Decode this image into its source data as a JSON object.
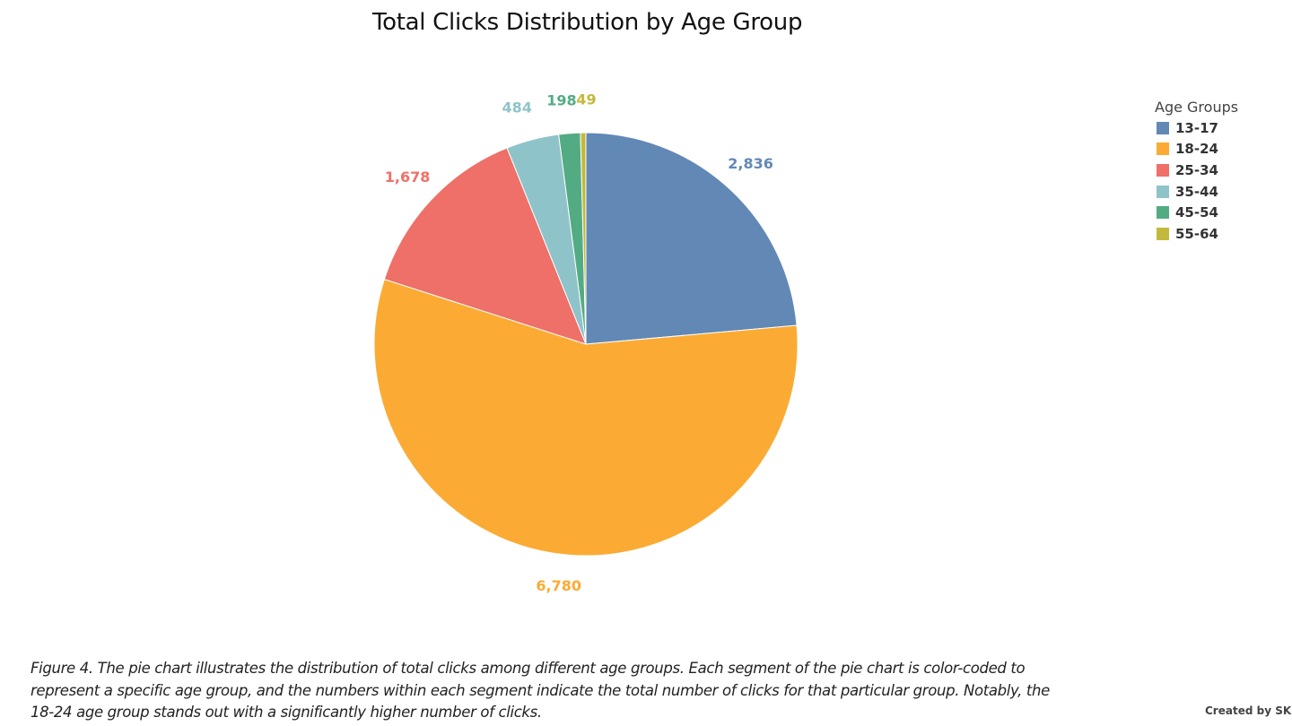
{
  "chart_data": {
    "type": "pie",
    "title": "Total Clicks Distribution by Age Group",
    "legend_title": "Age Groups",
    "legend_position": "top-right",
    "categories": [
      "13-17",
      "18-24",
      "25-34",
      "35-44",
      "45-54",
      "55-64"
    ],
    "values": [
      2836,
      6780,
      1678,
      484,
      198,
      49
    ],
    "value_labels": [
      "2,836",
      "6,780",
      "1,678",
      "484",
      "198",
      "49"
    ],
    "colors": [
      "#6288b5",
      "#fbab34",
      "#ee7068",
      "#8fc3ca",
      "#53ab84",
      "#c4b93c"
    ]
  },
  "caption": {
    "line1": "Figure 4. The pie chart illustrates the distribution of total clicks among different age groups. Each segment of the pie chart is color-coded to",
    "line2": "represent a specific age group, and the numbers within each segment indicate the total number of clicks for that particular group. Notably, the",
    "line3": "18-24 age group stands out with a significantly higher number of clicks."
  },
  "credit": "Created by SK"
}
